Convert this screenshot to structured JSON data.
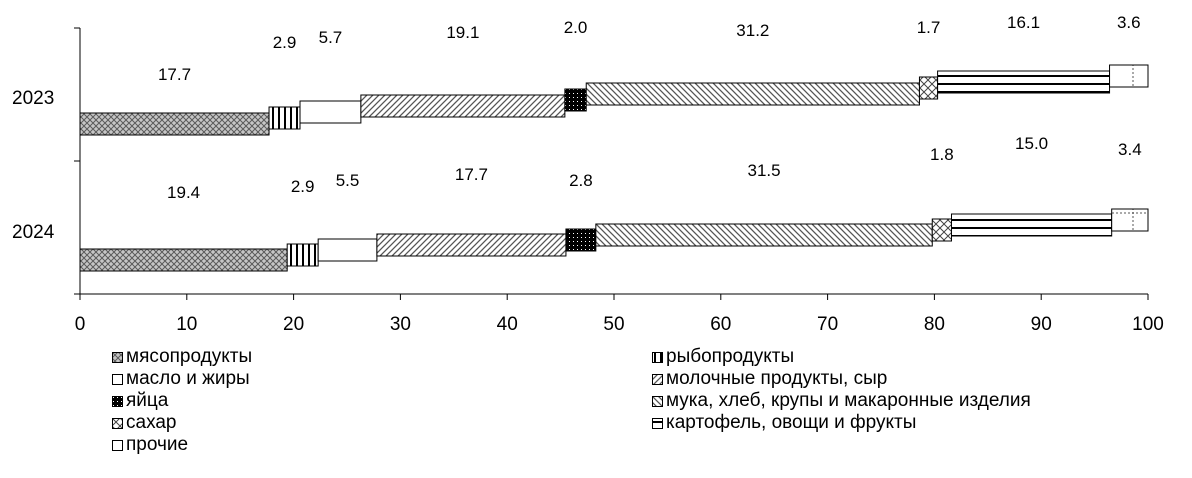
{
  "chart_data": {
    "type": "bar",
    "orientation": "horizontal",
    "stacked": true,
    "categories": [
      "2023",
      "2024"
    ],
    "series": [
      {
        "name": "мясопродукты",
        "values": [
          17.7,
          19.4
        ],
        "pattern": "crosshatch"
      },
      {
        "name": "рыбопродукты",
        "values": [
          2.9,
          2.9
        ],
        "pattern": "vertical-lines"
      },
      {
        "name": "масло и жиры",
        "values": [
          5.7,
          5.5
        ],
        "pattern": "solid-white"
      },
      {
        "name": "молочные продукты, сыр",
        "values": [
          19.1,
          17.7
        ],
        "pattern": "diagonal-up"
      },
      {
        "name": "яйца",
        "values": [
          2.0,
          2.8
        ],
        "pattern": "black-dotted"
      },
      {
        "name": "мука, хлеб, крупы и макаронные изделия",
        "values": [
          31.2,
          31.5
        ],
        "pattern": "diagonal-down"
      },
      {
        "name": "сахар",
        "values": [
          1.7,
          1.8
        ],
        "pattern": "diagonal-cross"
      },
      {
        "name": "картофель, овощи и фрукты",
        "values": [
          16.1,
          15.0
        ],
        "pattern": "horizontal-lines"
      },
      {
        "name": "прочие",
        "values": [
          3.6,
          3.4
        ],
        "pattern": "dotted-cross"
      }
    ],
    "data_labels": [
      [
        "17.7",
        "2.9",
        "5.7",
        "19.1",
        "2.0",
        "31.2",
        "1.7",
        "16.1",
        "3.6"
      ],
      [
        "19.4",
        "2.9",
        "5.5",
        "17.7",
        "2.8",
        "31.5",
        "1.8",
        "15.0",
        "3.4"
      ]
    ],
    "xlim": [
      0,
      100
    ],
    "xticks": [
      "0",
      "10",
      "20",
      "30",
      "40",
      "50",
      "60",
      "70",
      "80",
      "90",
      "100"
    ],
    "legend_position": "bottom",
    "grid": false,
    "title": "",
    "xlabel": "",
    "ylabel": ""
  }
}
